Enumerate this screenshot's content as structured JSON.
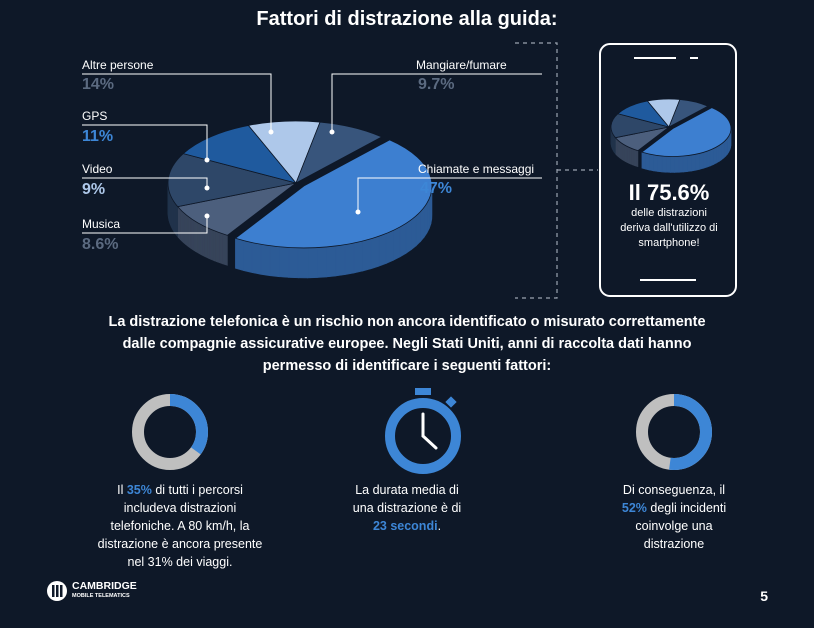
{
  "title": "Fattori di distrazione alla guida:",
  "colors": {
    "background": "#0e1828",
    "accent": "#3d86d6",
    "muted": "#5b6a80",
    "ring_gray": "#bfbfbf"
  },
  "chart_data": {
    "type": "pie",
    "title": "Fattori di distrazione alla guida:",
    "slices": [
      {
        "label": "Chiamate e messaggi",
        "value": 47,
        "display": "47%",
        "color": "#3d7fd0"
      },
      {
        "label": "Mangiare/fumare",
        "value": 9.7,
        "display": "9.7%",
        "color": "#4c5f7d"
      },
      {
        "label": "Altre persone",
        "value": 14,
        "display": "14%",
        "color": "#2e4768"
      },
      {
        "label": "GPS",
        "value": 11,
        "display": "11%",
        "color": "#1f5a9e"
      },
      {
        "label": "Video",
        "value": 9,
        "display": "9%",
        "color": "#aec8ea"
      },
      {
        "label": "Musica",
        "value": 8.6,
        "display": "8.6%",
        "color": "#38557c"
      }
    ]
  },
  "phone": {
    "big": "Il 75.6%",
    "line1": "delle distrazioni",
    "line2": "deriva dall'utilizzo di",
    "line3": "smartphone!"
  },
  "paragraph": {
    "line1": "La distrazione telefonica è un rischio non ancora identificato o misurato correttamente",
    "line2": "dalle compagnie assicurative europee. Negli Stati Uniti, anni di raccolta dati hanno",
    "line3": "permesso di identificare i seguenti fattori:"
  },
  "stats": [
    {
      "ring_percent": 35,
      "pre": "Il ",
      "highlight": "35%",
      "post": " di tutti i percorsi",
      "lines": [
        "includeva distrazioni",
        "telefoniche. A 80 km/h, la",
        "distrazione è ancora presente",
        "nel 31% dei viaggi."
      ]
    },
    {
      "line1": "La durata media di",
      "line2": "una distrazione è di",
      "highlight": "23 secondi",
      "post": "."
    },
    {
      "ring_percent": 52,
      "line1": "Di conseguenza, il",
      "highlight": "52%",
      "post": " degli incidenti",
      "lines": [
        "coinvolge una",
        "distrazione"
      ]
    }
  ],
  "logo": {
    "line1": "CAMBRIDGE",
    "line2": "MOBILE TELEMATICS"
  },
  "page_number": "5"
}
